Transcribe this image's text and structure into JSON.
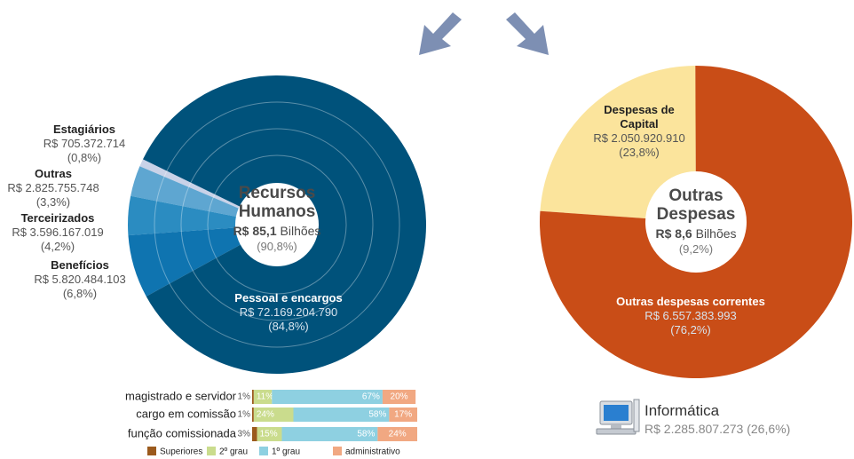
{
  "chart_data": [
    {
      "type": "pie",
      "title": [
        "Recursos",
        "Humanos"
      ],
      "amount": "R$ 85,1",
      "unit": "Bilhões",
      "share": "(90,8%)",
      "categories": [
        "Estagiários",
        "Outras",
        "Terceirizados",
        "Benefícios",
        "Pessoal e encargos"
      ],
      "values": [
        705372714,
        2825755748,
        3596167019,
        5820484103,
        72169204790
      ],
      "value_labels": [
        "R$ 705.372.714",
        "R$ 2.825.755.748",
        "R$ 3.596.167.019",
        "R$ 5.820.484.103",
        "R$ 72.169.204.790"
      ],
      "percent_labels": [
        "(0,8%)",
        "(3,3%)",
        "(4,2%)",
        "(6,8%)",
        "(84,8%)"
      ],
      "colors": [
        "#c9d2e8",
        "#5ea6d1",
        "#2b8cc1",
        "#0f74b0",
        "#00527b"
      ]
    },
    {
      "type": "pie",
      "title": [
        "Outras",
        "Despesas"
      ],
      "amount": "R$ 8,6",
      "unit": "Bilhões",
      "share": "(9,2%)",
      "categories": [
        "Despesas de Capital",
        "Outras despesas correntes"
      ],
      "values": [
        2050920910,
        6557383993
      ],
      "value_labels": [
        "R$ 2.050.920.910",
        "R$ 6.557.383.993"
      ],
      "percent_labels": [
        "(23,8%)",
        "(76,2%)"
      ],
      "colors": [
        "#fbe49c",
        "#c94d17"
      ]
    },
    {
      "type": "stacked_barh",
      "categories": [
        "magistrado e servidor",
        "cargo em comissão",
        "função comissionada"
      ],
      "xlim": [
        0,
        100
      ],
      "series": [
        {
          "name": "Superiores",
          "color": "#9b5a1d",
          "values": [
            1,
            1,
            3
          ],
          "value_labels": [
            "1%",
            "1%",
            "3%"
          ]
        },
        {
          "name": "2º grau",
          "color": "#cadc8d",
          "values": [
            11,
            24,
            15
          ],
          "value_labels": [
            "11%",
            "24%",
            "15%"
          ]
        },
        {
          "name": "1º grau",
          "color": "#8ed0e1",
          "values": [
            67,
            58,
            58
          ],
          "value_labels": [
            "67%",
            "58%",
            "58%"
          ]
        },
        {
          "name": "administrativo",
          "color": "#f1a882",
          "values": [
            20,
            17,
            24
          ],
          "value_labels": [
            "20%",
            "17%",
            "24%"
          ]
        }
      ]
    }
  ],
  "informatica": {
    "label": "Informática",
    "value_label": "R$ 2.285.807.273 (26,6%)"
  }
}
